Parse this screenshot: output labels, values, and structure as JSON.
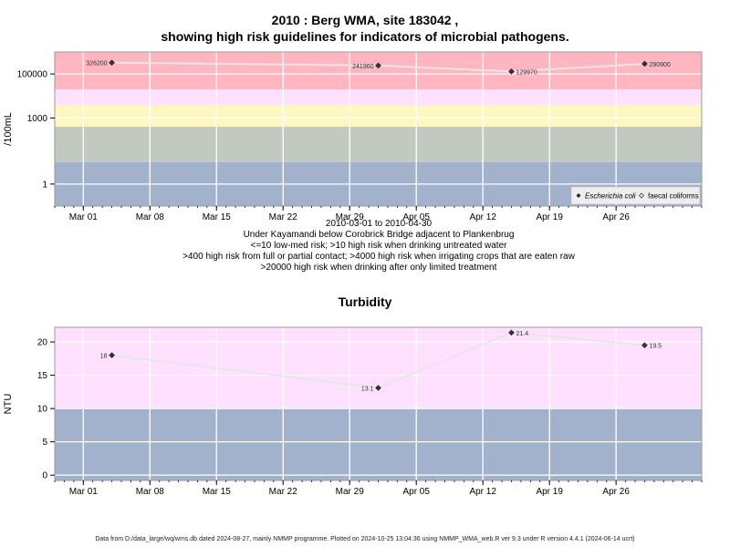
{
  "chart_data": [
    {
      "type": "line",
      "title_line1": "2010 : Berg WMA, site 183042 ,",
      "title_line2": "showing high risk guidelines for indicators of microbial pathogens.",
      "ylabel": "/100mL",
      "y_scale": "log10",
      "ylim": [
        0.1,
        1000000
      ],
      "y_ticks": [
        1,
        1000,
        100000
      ],
      "y_tick_labels": [
        "1",
        "1000",
        "100000"
      ],
      "x_ticks": [
        "2010-03-01",
        "2010-03-08",
        "2010-03-15",
        "2010-03-22",
        "2010-03-29",
        "2010-04-05",
        "2010-04-12",
        "2010-04-19",
        "2010-04-26"
      ],
      "x_tick_labels": [
        "Mar 01",
        "Mar 08",
        "Mar 15",
        "Mar 22",
        "Mar 29",
        "Apr 05",
        "Apr 12",
        "Apr 19",
        "Apr 26"
      ],
      "xlim": [
        "2010-02-26",
        "2010-05-05"
      ],
      "bands": [
        {
          "from": 0.1,
          "to": 10,
          "color": "#a2b2cc"
        },
        {
          "from": 10,
          "to": 400,
          "color": "#c1c9c1"
        },
        {
          "from": 400,
          "to": 4000,
          "color": "#fff7c1"
        },
        {
          "from": 4000,
          "to": 20000,
          "color": "#ffe1ff"
        },
        {
          "from": 20000,
          "to": 1000000,
          "color": "#ffb6c1"
        }
      ],
      "series": [
        {
          "name": "Escherichia coli",
          "marker": "filled-diamond",
          "x": [
            "2010-03-04",
            "2010-04-01",
            "2010-04-15",
            "2010-04-29"
          ],
          "y": [
            326200,
            241960,
            129970,
            290900
          ],
          "labels": [
            "326200",
            "241960",
            "129970",
            "290900"
          ]
        },
        {
          "name": "faecal coliforms",
          "marker": "open-diamond",
          "x": [],
          "y": []
        }
      ],
      "legend_position": "bottom-right",
      "grid": true,
      "caption_lines": [
        "2010-03-01 to 2010-04-30",
        "Under Kayamandi below Corobrick Bridge adjacent to Plankenbrug",
        "<=10 low-med risk; >10 high risk when drinking untreated water",
        ">400 high risk from full or partial contact; >4000 high risk when irrigating crops that are eaten raw",
        ">20000 high risk when drinking after only limited treatment"
      ]
    },
    {
      "type": "line",
      "title": "Turbidity",
      "ylabel": "NTU",
      "ylim": [
        -0.8,
        22.2
      ],
      "y_ticks": [
        0,
        5,
        10,
        15,
        20
      ],
      "y_tick_labels": [
        "0",
        "5",
        "10",
        "15",
        "20"
      ],
      "x_ticks": [
        "2010-03-01",
        "2010-03-08",
        "2010-03-15",
        "2010-03-22",
        "2010-03-29",
        "2010-04-05",
        "2010-04-12",
        "2010-04-19",
        "2010-04-26"
      ],
      "x_tick_labels": [
        "Mar 01",
        "Mar 08",
        "Mar 15",
        "Mar 22",
        "Mar 29",
        "Apr 05",
        "Apr 12",
        "Apr 19",
        "Apr 26"
      ],
      "xlim": [
        "2010-02-26",
        "2010-05-05"
      ],
      "bands": [
        {
          "from": -0.8,
          "to": 10,
          "color": "#a2b2cc"
        },
        {
          "from": 10,
          "to": 22.2,
          "color": "#ffe1ff"
        }
      ],
      "series": [
        {
          "x": [
            "2010-03-04",
            "2010-04-01",
            "2010-04-15",
            "2010-04-29"
          ],
          "y": [
            18,
            13.1,
            21.4,
            19.5
          ],
          "labels": [
            "18",
            "13.1",
            "21.4",
            "19.5"
          ]
        }
      ],
      "grid": true
    }
  ],
  "footer": "Data from D:/data_large/wq/wms.db dated 2024-08-27, mainly NMMP programme. Plotted on 2024-10-25 13:04:36 using NMMP_WMA_web.R ver 9.3 under R version 4.4.1 (2024-06-14 ucrt)"
}
